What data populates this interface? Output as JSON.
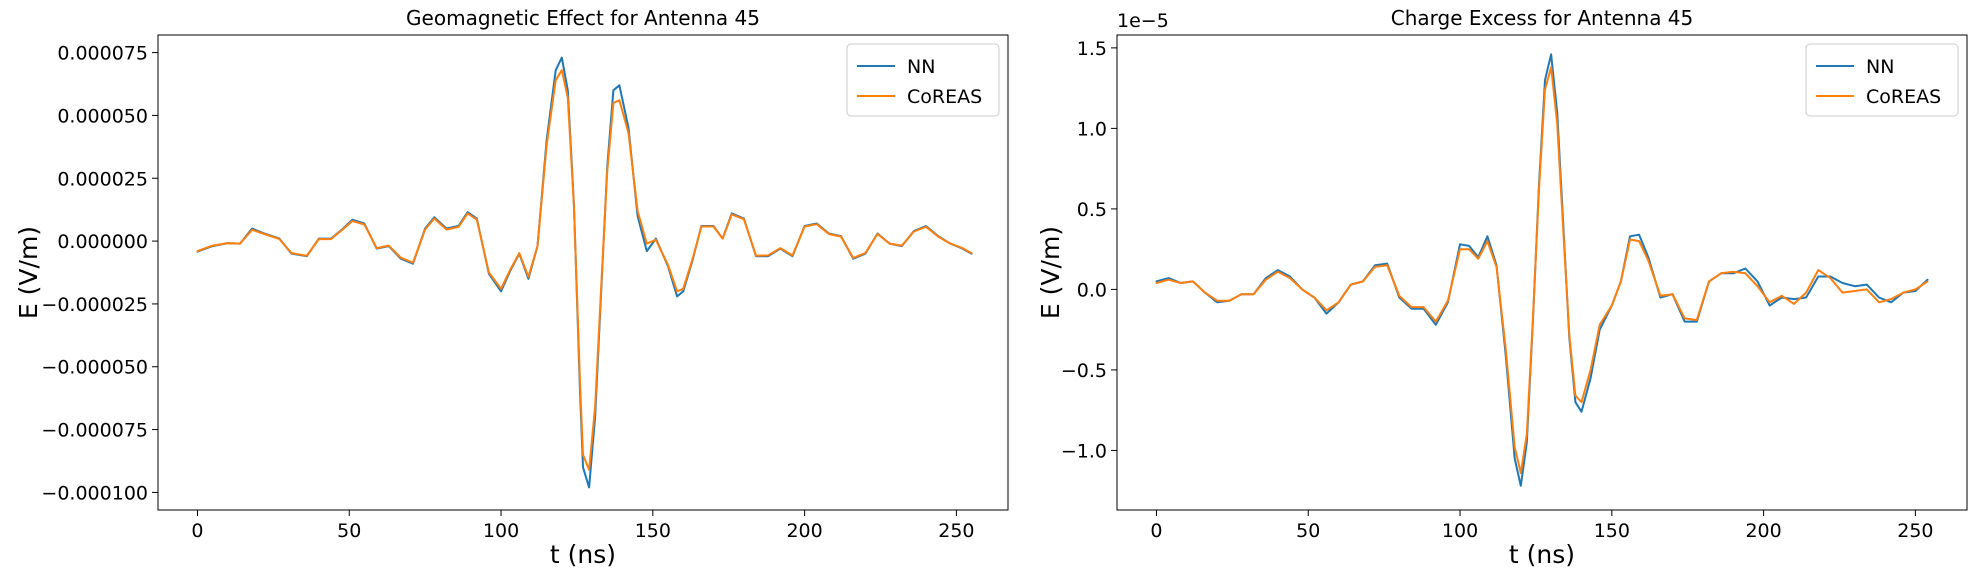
{
  "colors": {
    "nn": "#1f77b4",
    "coreas": "#ff7f0e",
    "axis": "#000000"
  },
  "chart_data": [
    {
      "type": "line",
      "title": "Geomagnetic Effect for Antenna 45",
      "xlabel": "t (ns)",
      "ylabel": "E (V/m)",
      "xlim": [
        -13,
        267
      ],
      "ylim": [
        -0.000107,
        8.2e-05
      ],
      "xticks": [
        0,
        50,
        100,
        150,
        200,
        250
      ],
      "xtick_labels": [
        "0",
        "50",
        "100",
        "150",
        "200",
        "250"
      ],
      "yticks": [
        -0.0001,
        -7.5e-05,
        -5e-05,
        -2.5e-05,
        0,
        2.5e-05,
        5e-05,
        7.5e-05
      ],
      "ytick_labels": [
        "−0.000100",
        "−0.000075",
        "−0.000050",
        "−0.000025",
        "0.000000",
        "0.000025",
        "0.000050",
        "0.000075"
      ],
      "legend": "top-right",
      "grid": false,
      "series": [
        {
          "name": "NN",
          "color": "#1f77b4",
          "x": [
            0,
            5,
            10,
            14,
            18,
            22,
            27,
            31,
            36,
            40,
            44,
            48,
            51,
            55,
            59,
            63,
            67,
            71,
            75,
            78,
            82,
            86,
            89,
            92,
            96,
            100,
            103,
            106,
            109,
            112,
            115,
            118,
            120,
            122,
            124,
            126,
            127,
            129,
            131,
            133,
            135,
            137,
            139,
            142,
            145,
            148,
            151,
            155,
            158,
            160,
            163,
            166,
            170,
            173,
            176,
            180,
            184,
            188,
            192,
            196,
            200,
            204,
            208,
            212,
            216,
            220,
            224,
            228,
            232,
            236,
            240,
            244,
            248,
            252,
            255
          ],
          "y": [
            -4.2e-06,
            -2e-06,
            -8e-07,
            -1e-06,
            5e-06,
            3e-06,
            1e-06,
            -5e-06,
            -6e-06,
            1e-06,
            1e-06,
            5e-06,
            8.5e-06,
            7e-06,
            -3e-06,
            -2e-06,
            -7e-06,
            -9e-06,
            5e-06,
            9.5e-06,
            5e-06,
            6e-06,
            1.15e-05,
            9e-06,
            -1.3e-05,
            -2e-05,
            -1.2e-05,
            -5e-06,
            -1.5e-05,
            -2e-06,
            4e-05,
            6.8e-05,
            7.3e-05,
            6e-05,
            1.5e-05,
            -6e-05,
            -9e-05,
            -9.8e-05,
            -7e-05,
            -2e-05,
            3e-05,
            6e-05,
            6.2e-05,
            4.5e-05,
            1e-05,
            -4e-06,
            1e-06,
            -1e-05,
            -2.2e-05,
            -2e-05,
            -8e-06,
            6e-06,
            6e-06,
            1e-06,
            1.1e-05,
            9e-06,
            -6e-06,
            -6e-06,
            -3e-06,
            -6e-06,
            6e-06,
            7e-06,
            3e-06,
            2e-06,
            -7e-06,
            -5e-06,
            3e-06,
            -1e-06,
            -2e-06,
            4e-06,
            6e-06,
            2e-06,
            -1e-06,
            -3e-06,
            -5e-06
          ]
        },
        {
          "name": "CoREAS",
          "color": "#ff7f0e",
          "x": [
            0,
            5,
            10,
            14,
            18,
            22,
            27,
            31,
            36,
            40,
            44,
            48,
            51,
            55,
            59,
            63,
            67,
            71,
            75,
            78,
            82,
            86,
            89,
            92,
            96,
            100,
            103,
            106,
            109,
            112,
            115,
            118,
            120,
            122,
            124,
            126,
            127,
            129,
            131,
            133,
            135,
            137,
            139,
            142,
            145,
            148,
            151,
            155,
            158,
            160,
            163,
            166,
            170,
            173,
            176,
            180,
            184,
            188,
            192,
            196,
            200,
            204,
            208,
            212,
            216,
            220,
            224,
            228,
            232,
            236,
            240,
            244,
            248,
            252,
            255
          ],
          "y": [
            -4e-06,
            -1.8e-06,
            -8e-07,
            -1e-06,
            4.5e-06,
            2.8e-06,
            8e-07,
            -4.8e-06,
            -5.8e-06,
            8e-07,
            8e-07,
            4.8e-06,
            8e-06,
            6.6e-06,
            -2.8e-06,
            -1.8e-06,
            -6.6e-06,
            -8.6e-06,
            4.6e-06,
            9e-06,
            4.6e-06,
            5.6e-06,
            1.1e-05,
            8.6e-06,
            -1.25e-05,
            -1.9e-05,
            -1.15e-05,
            -4.8e-06,
            -1.42e-05,
            -2e-06,
            3.8e-05,
            6.4e-05,
            6.8e-05,
            5.7e-05,
            1.4e-05,
            -5.6e-05,
            -8.5e-05,
            -9.1e-05,
            -6.6e-05,
            -1.8e-05,
            2.8e-05,
            5.5e-05,
            5.6e-05,
            4.3e-05,
            1.2e-05,
            -1e-06,
            5e-07,
            -9.5e-06,
            -2e-05,
            -1.9e-05,
            -7.5e-06,
            5.8e-06,
            5.8e-06,
            1e-06,
            1.06e-05,
            8.7e-06,
            -5.8e-06,
            -5.7e-06,
            -2.8e-06,
            -5.7e-06,
            5.8e-06,
            6.7e-06,
            2.8e-06,
            1.8e-06,
            -6.7e-06,
            -4.8e-06,
            2.8e-06,
            -1e-06,
            -1.8e-06,
            3.8e-06,
            5.7e-06,
            1.8e-06,
            -1e-06,
            -2.8e-06,
            -4.8e-06
          ]
        }
      ]
    },
    {
      "type": "line",
      "title": "Charge Excess for Antenna 45",
      "offset_text": "1e−5",
      "xlabel": "t (ns)",
      "ylabel": "E (V/m)",
      "xlim": [
        -13,
        267
      ],
      "ylim": [
        -1.37,
        1.58
      ],
      "xticks": [
        0,
        50,
        100,
        150,
        200,
        250
      ],
      "xtick_labels": [
        "0",
        "50",
        "100",
        "150",
        "200",
        "250"
      ],
      "yticks": [
        -1.0,
        -0.5,
        0.0,
        0.5,
        1.0,
        1.5
      ],
      "ytick_labels": [
        "−1.0",
        "−0.5",
        "0.0",
        "0.5",
        "1.0",
        "1.5"
      ],
      "legend": "top-right",
      "grid": false,
      "series": [
        {
          "name": "NN",
          "color": "#1f77b4",
          "x": [
            0,
            4,
            8,
            12,
            16,
            20,
            24,
            28,
            32,
            36,
            40,
            44,
            48,
            52,
            56,
            60,
            64,
            68,
            72,
            76,
            80,
            84,
            88,
            92,
            96,
            100,
            103,
            106,
            109,
            112,
            115,
            118,
            120,
            122,
            124,
            126,
            128,
            130,
            132,
            134,
            136,
            138,
            140,
            143,
            146,
            150,
            153,
            156,
            159,
            162,
            166,
            170,
            174,
            178,
            182,
            186,
            190,
            194,
            198,
            202,
            206,
            210,
            214,
            218,
            222,
            226,
            230,
            234,
            238,
            242,
            246,
            250,
            254
          ],
          "y": [
            0.05,
            0.07,
            0.04,
            0.05,
            -0.02,
            -0.08,
            -0.07,
            -0.03,
            -0.03,
            0.07,
            0.12,
            0.08,
            0.0,
            -0.05,
            -0.15,
            -0.08,
            0.03,
            0.05,
            0.15,
            0.16,
            -0.05,
            -0.12,
            -0.12,
            -0.22,
            -0.08,
            0.28,
            0.27,
            0.2,
            0.33,
            0.15,
            -0.4,
            -1.05,
            -1.22,
            -0.95,
            -0.2,
            0.65,
            1.3,
            1.46,
            1.1,
            0.4,
            -0.3,
            -0.7,
            -0.76,
            -0.55,
            -0.25,
            -0.1,
            0.05,
            0.33,
            0.34,
            0.2,
            -0.05,
            -0.03,
            -0.2,
            -0.2,
            0.05,
            0.1,
            0.1,
            0.13,
            0.05,
            -0.1,
            -0.05,
            -0.06,
            -0.05,
            0.08,
            0.08,
            0.04,
            0.02,
            0.03,
            -0.05,
            -0.08,
            -0.02,
            -0.01,
            0.06
          ]
        },
        {
          "name": "CoREAS",
          "color": "#ff7f0e",
          "x": [
            0,
            4,
            8,
            12,
            16,
            20,
            24,
            28,
            32,
            36,
            40,
            44,
            48,
            52,
            56,
            60,
            64,
            68,
            72,
            76,
            80,
            84,
            88,
            92,
            96,
            100,
            103,
            106,
            109,
            112,
            115,
            118,
            120,
            122,
            124,
            126,
            128,
            130,
            132,
            134,
            136,
            138,
            140,
            143,
            146,
            150,
            153,
            156,
            159,
            162,
            166,
            170,
            174,
            178,
            182,
            186,
            190,
            194,
            198,
            202,
            206,
            210,
            214,
            218,
            222,
            226,
            230,
            234,
            238,
            242,
            246,
            250,
            254
          ],
          "y": [
            0.04,
            0.06,
            0.04,
            0.05,
            -0.02,
            -0.07,
            -0.07,
            -0.03,
            -0.03,
            0.06,
            0.11,
            0.07,
            0.0,
            -0.05,
            -0.13,
            -0.08,
            0.03,
            0.05,
            0.14,
            0.15,
            -0.04,
            -0.11,
            -0.11,
            -0.2,
            -0.07,
            0.25,
            0.25,
            0.19,
            0.3,
            0.14,
            -0.36,
            -0.98,
            -1.14,
            -0.9,
            -0.18,
            0.62,
            1.24,
            1.38,
            1.03,
            0.36,
            -0.28,
            -0.66,
            -0.7,
            -0.5,
            -0.22,
            -0.1,
            0.05,
            0.31,
            0.3,
            0.18,
            -0.04,
            -0.03,
            -0.18,
            -0.19,
            0.05,
            0.1,
            0.11,
            0.1,
            0.02,
            -0.08,
            -0.04,
            -0.09,
            -0.02,
            0.12,
            0.07,
            -0.02,
            -0.01,
            0.0,
            -0.08,
            -0.06,
            -0.02,
            0.0,
            0.05
          ]
        }
      ]
    }
  ]
}
